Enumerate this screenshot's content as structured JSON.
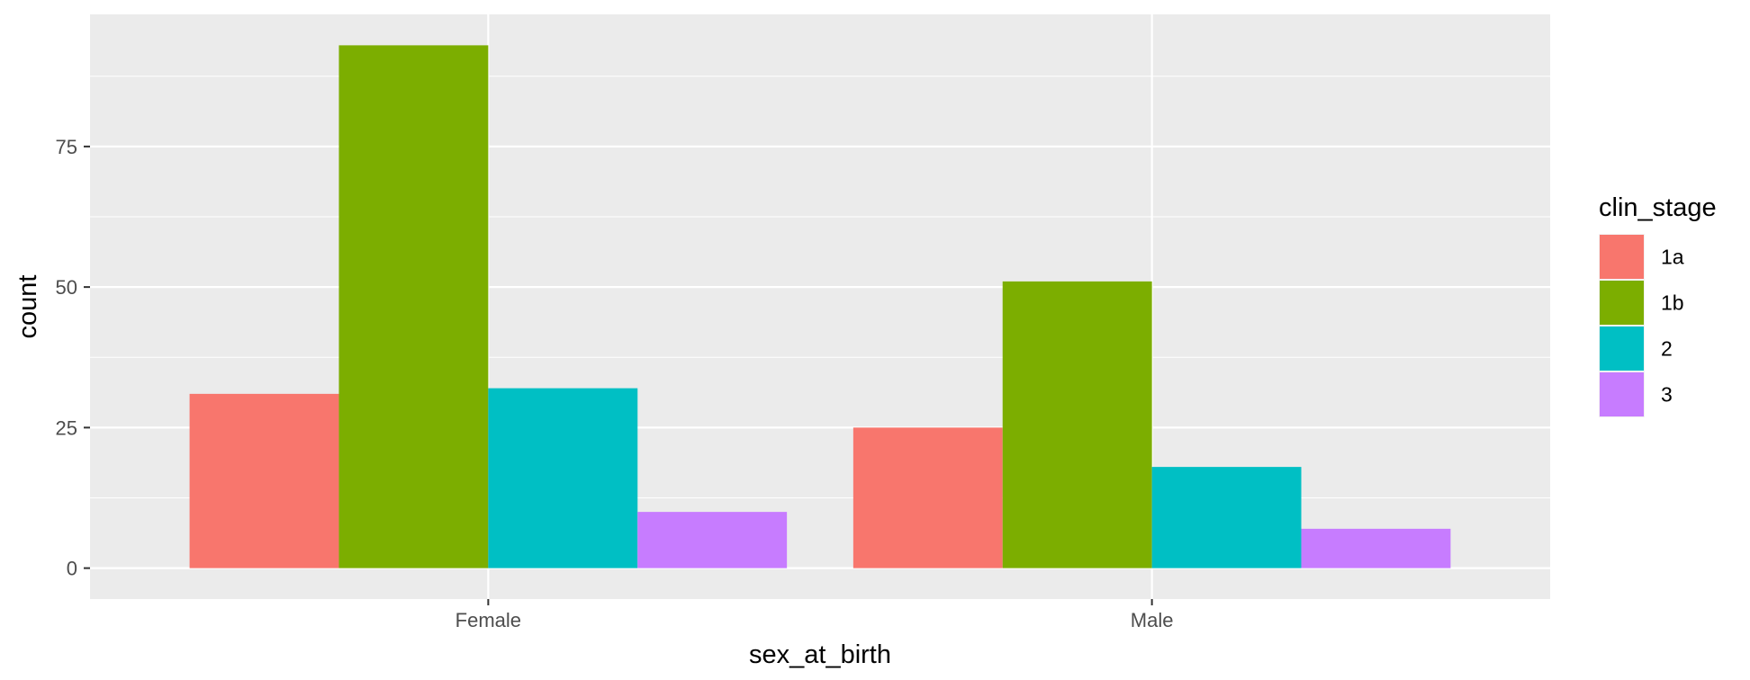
{
  "chart_data": {
    "type": "bar",
    "xlabel": "sex_at_birth",
    "ylabel": "count",
    "categories": [
      "Female",
      "Male"
    ],
    "series": [
      {
        "name": "1a",
        "color": "#F8766D",
        "values": [
          31,
          25
        ]
      },
      {
        "name": "1b",
        "color": "#7CAE00",
        "values": [
          93,
          51
        ]
      },
      {
        "name": "2",
        "color": "#00BFC4",
        "values": [
          32,
          18
        ]
      },
      {
        "name": "3",
        "color": "#C77CFF",
        "values": [
          10,
          7
        ]
      }
    ],
    "ylim": [
      -5.5,
      98.5
    ],
    "yticks": [
      0,
      25,
      50,
      75
    ],
    "yticks_minor": [
      12.5,
      37.5,
      62.5,
      87.5
    ],
    "legend": {
      "title": "clin_stage",
      "position": "right"
    },
    "grid": true,
    "panel_background": "#EBEBEB",
    "grid_color": "#FFFFFF"
  }
}
